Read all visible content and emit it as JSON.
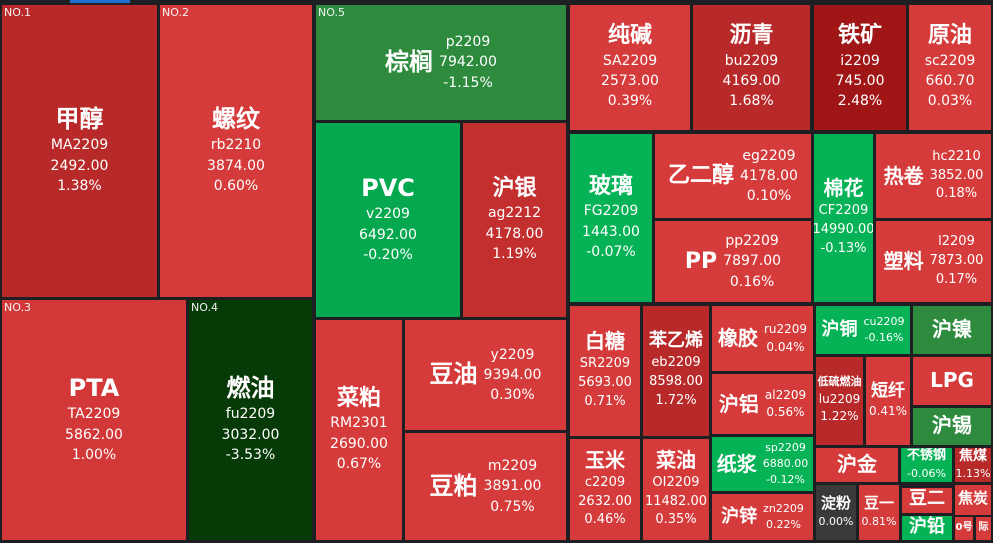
{
  "tiles": [
    {
      "rank": "NO.1",
      "name": "甲醇",
      "code": "MA2209",
      "price": "2492.00",
      "change": "1.38%",
      "color": "#b82a2a"
    },
    {
      "rank": "NO.2",
      "name": "螺纹",
      "code": "rb2210",
      "price": "3874.00",
      "change": "0.60%",
      "color": "#d63b3b"
    },
    {
      "rank": "NO.3",
      "name": "PTA",
      "code": "TA2209",
      "price": "5862.00",
      "change": "1.00%",
      "color": "#d23838"
    },
    {
      "rank": "NO.4",
      "name": "燃油",
      "code": "fu2209",
      "price": "3032.00",
      "change": "-3.53%",
      "color": "#063a07"
    },
    {
      "rank": "NO.5",
      "name": "棕榈",
      "code": "p2209",
      "price": "7942.00",
      "change": "-1.15%",
      "color": "#2e8b3e"
    },
    {
      "name": "PVC",
      "code": "v2209",
      "price": "6492.00",
      "change": "-0.20%",
      "color": "#05a84f"
    },
    {
      "name": "沪银",
      "code": "ag2212",
      "price": "4178.00",
      "change": "1.19%",
      "color": "#c32e2e"
    },
    {
      "name": "菜粕",
      "code": "RM2301",
      "price": "2690.00",
      "change": "0.67%",
      "color": "#d63b3b"
    },
    {
      "name": "豆油",
      "code": "y2209",
      "price": "9394.00",
      "change": "0.30%",
      "color": "#d63b3b"
    },
    {
      "name": "豆粕",
      "code": "m2209",
      "price": "3891.00",
      "change": "0.75%",
      "color": "#d63b3b"
    },
    {
      "name": "纯碱",
      "code": "SA2209",
      "price": "2573.00",
      "change": "0.39%",
      "color": "#d63b3b"
    },
    {
      "name": "沥青",
      "code": "bu2209",
      "price": "4169.00",
      "change": "1.68%",
      "color": "#b82a2a"
    },
    {
      "name": "铁矿",
      "code": "i2209",
      "price": "745.00",
      "change": "2.48%",
      "color": "#a01616"
    },
    {
      "name": "原油",
      "code": "sc2209",
      "price": "660.70",
      "change": "0.03%",
      "color": "#d63b3b"
    },
    {
      "name": "玻璃",
      "code": "FG2209",
      "price": "1443.00",
      "change": "-0.07%",
      "color": "#06b256"
    },
    {
      "name": "乙二醇",
      "code": "eg2209",
      "price": "4178.00",
      "change": "0.10%",
      "color": "#d63b3b"
    },
    {
      "name": "PP",
      "code": "pp2209",
      "price": "7897.00",
      "change": "0.16%",
      "color": "#d63b3b"
    },
    {
      "name": "棉花",
      "code": "CF2209",
      "price": "14990.00",
      "change": "-0.13%",
      "color": "#06b256"
    },
    {
      "name": "热卷",
      "code": "hc2210",
      "price": "3852.00",
      "change": "0.18%",
      "color": "#d63b3b"
    },
    {
      "name": "塑料",
      "code": "l2209",
      "price": "7873.00",
      "change": "0.17%",
      "color": "#d63b3b"
    },
    {
      "name": "白糖",
      "code": "SR2209",
      "price": "5693.00",
      "change": "0.71%",
      "color": "#d63b3b"
    },
    {
      "name": "苯乙烯",
      "code": "eb2209",
      "price": "8598.00",
      "change": "1.72%",
      "color": "#b82a2a"
    },
    {
      "name": "玉米",
      "code": "c2209",
      "price": "2632.00",
      "change": "0.46%",
      "color": "#d63b3b"
    },
    {
      "name": "菜油",
      "code": "OI2209",
      "price": "11482.00",
      "change": "0.35%",
      "color": "#d63b3b"
    },
    {
      "name": "橡胶",
      "code": "ru2209",
      "change": "0.04%",
      "color": "#d63b3b"
    },
    {
      "name": "沪铝",
      "code": "al2209",
      "change": "0.56%",
      "color": "#d63b3b"
    },
    {
      "name": "纸浆",
      "code": "sp2209",
      "price": "6880.00",
      "change": "-0.12%",
      "color": "#06b256"
    },
    {
      "name": "沪锌",
      "code": "zn2209",
      "change": "0.22%",
      "color": "#d63b3b"
    },
    {
      "name": "沪铜",
      "code": "cu2209",
      "change": "-0.16%",
      "color": "#06b256"
    },
    {
      "name": "沪镍",
      "color": "#2e8b3e"
    },
    {
      "name": "低硫燃油",
      "code": "lu2209",
      "change": "1.22%",
      "color": "#b82a2a"
    },
    {
      "name": "短纤",
      "change": "0.41%",
      "color": "#d63b3b"
    },
    {
      "name": "LPG",
      "color": "#d63b3b"
    },
    {
      "name": "沪锡",
      "color": "#2e8b3e"
    },
    {
      "name": "沪金",
      "color": "#d63b3b"
    },
    {
      "name": "不锈钢",
      "change": "-0.06%",
      "color": "#06b256"
    },
    {
      "name": "焦煤",
      "change": "1.13%",
      "color": "#b82a2a"
    },
    {
      "name": "淀粉",
      "change": "0.00%",
      "color": "#3a3a3a"
    },
    {
      "name": "豆一",
      "change": "0.81%",
      "color": "#d63b3b"
    },
    {
      "name": "豆二",
      "color": "#d63b3b"
    },
    {
      "name": "沪铅",
      "color": "#06b256"
    },
    {
      "name": "焦炭",
      "color": "#d63b3b"
    },
    {
      "name": "0号",
      "color": "#d63b3b"
    },
    {
      "name": "际",
      "color": "#d63b3b"
    }
  ]
}
